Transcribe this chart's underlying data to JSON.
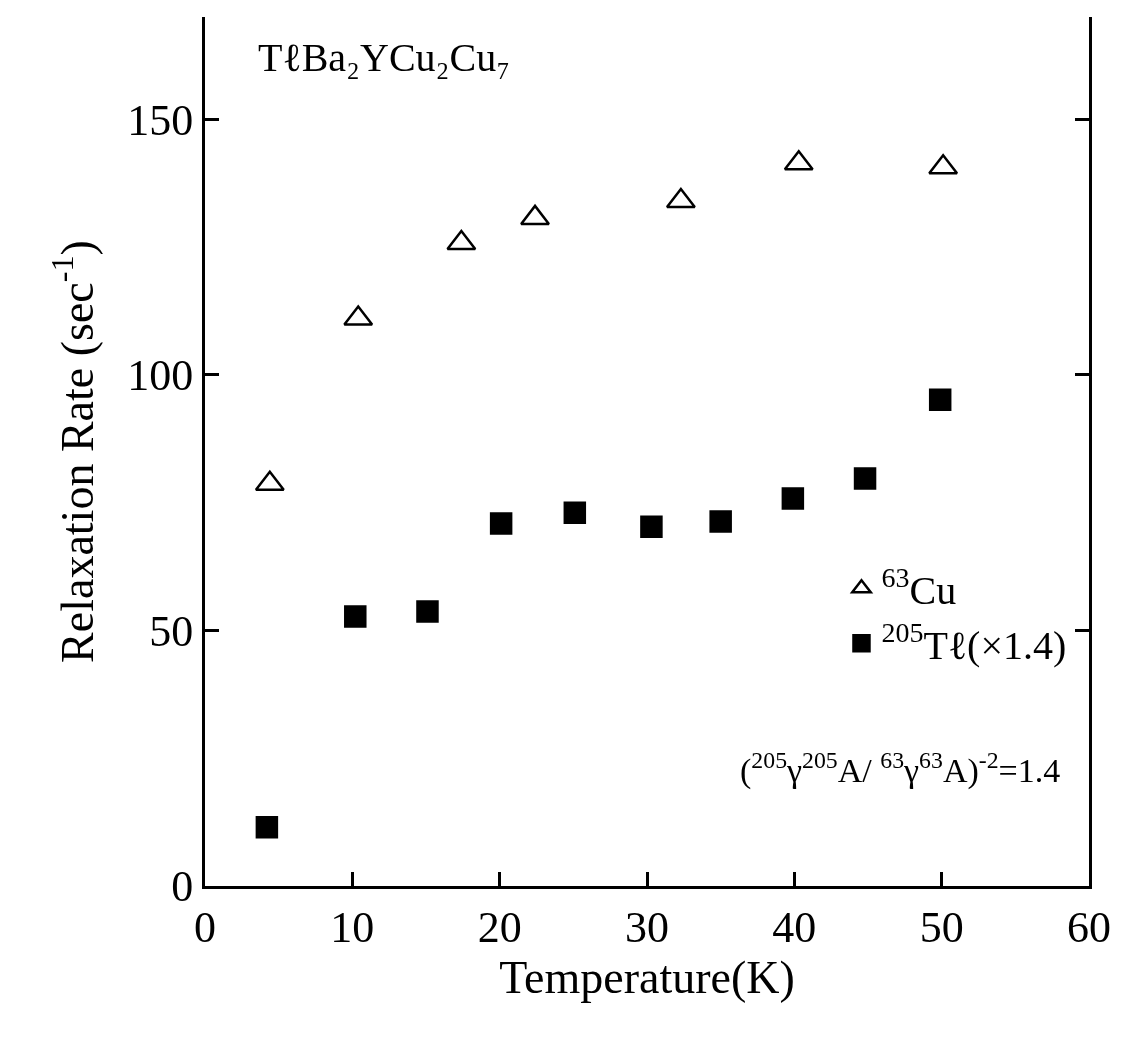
{
  "chart_data": {
    "type": "scatter",
    "title": "TℓBa₂YCu₂Cu₇",
    "xlabel": "Temperature(K)",
    "ylabel": "Relaxation Rate (sec$^{-1}$)",
    "xlim": [
      0,
      60
    ],
    "xticks": [
      0,
      10,
      20,
      30,
      40,
      50,
      60
    ],
    "ylim": [
      0,
      170
    ],
    "yticks": [
      0,
      50,
      100,
      150
    ],
    "grid": false,
    "legend": "bottom right",
    "series": [
      {
        "name": "$^{63}$Cu",
        "color": "#000000",
        "marker": "triangle",
        "x": [
          4.4,
          10.4,
          17.4,
          22.4,
          32.3,
          40.3,
          50.1
        ],
        "values": [
          78.7,
          111,
          125.8,
          130.7,
          134,
          141.4,
          140.6
        ]
      },
      {
        "name": "$^{205}$Tℓ(×1.4)",
        "color": "#000000",
        "marker": "square",
        "x": [
          4.2,
          10.2,
          15.1,
          20.1,
          25.1,
          30.3,
          35,
          39.9,
          44.8,
          49.9
        ],
        "values": [
          11.5,
          52.7,
          53.7,
          70.9,
          73,
          70.3,
          71.3,
          75.8,
          79.7,
          95.1
        ]
      }
    ],
    "annotations": [
      "($^{205}$γ$^{205}$A/ $^{63}$γ$^{63}$A)$^{-2}$=1.4"
    ]
  }
}
